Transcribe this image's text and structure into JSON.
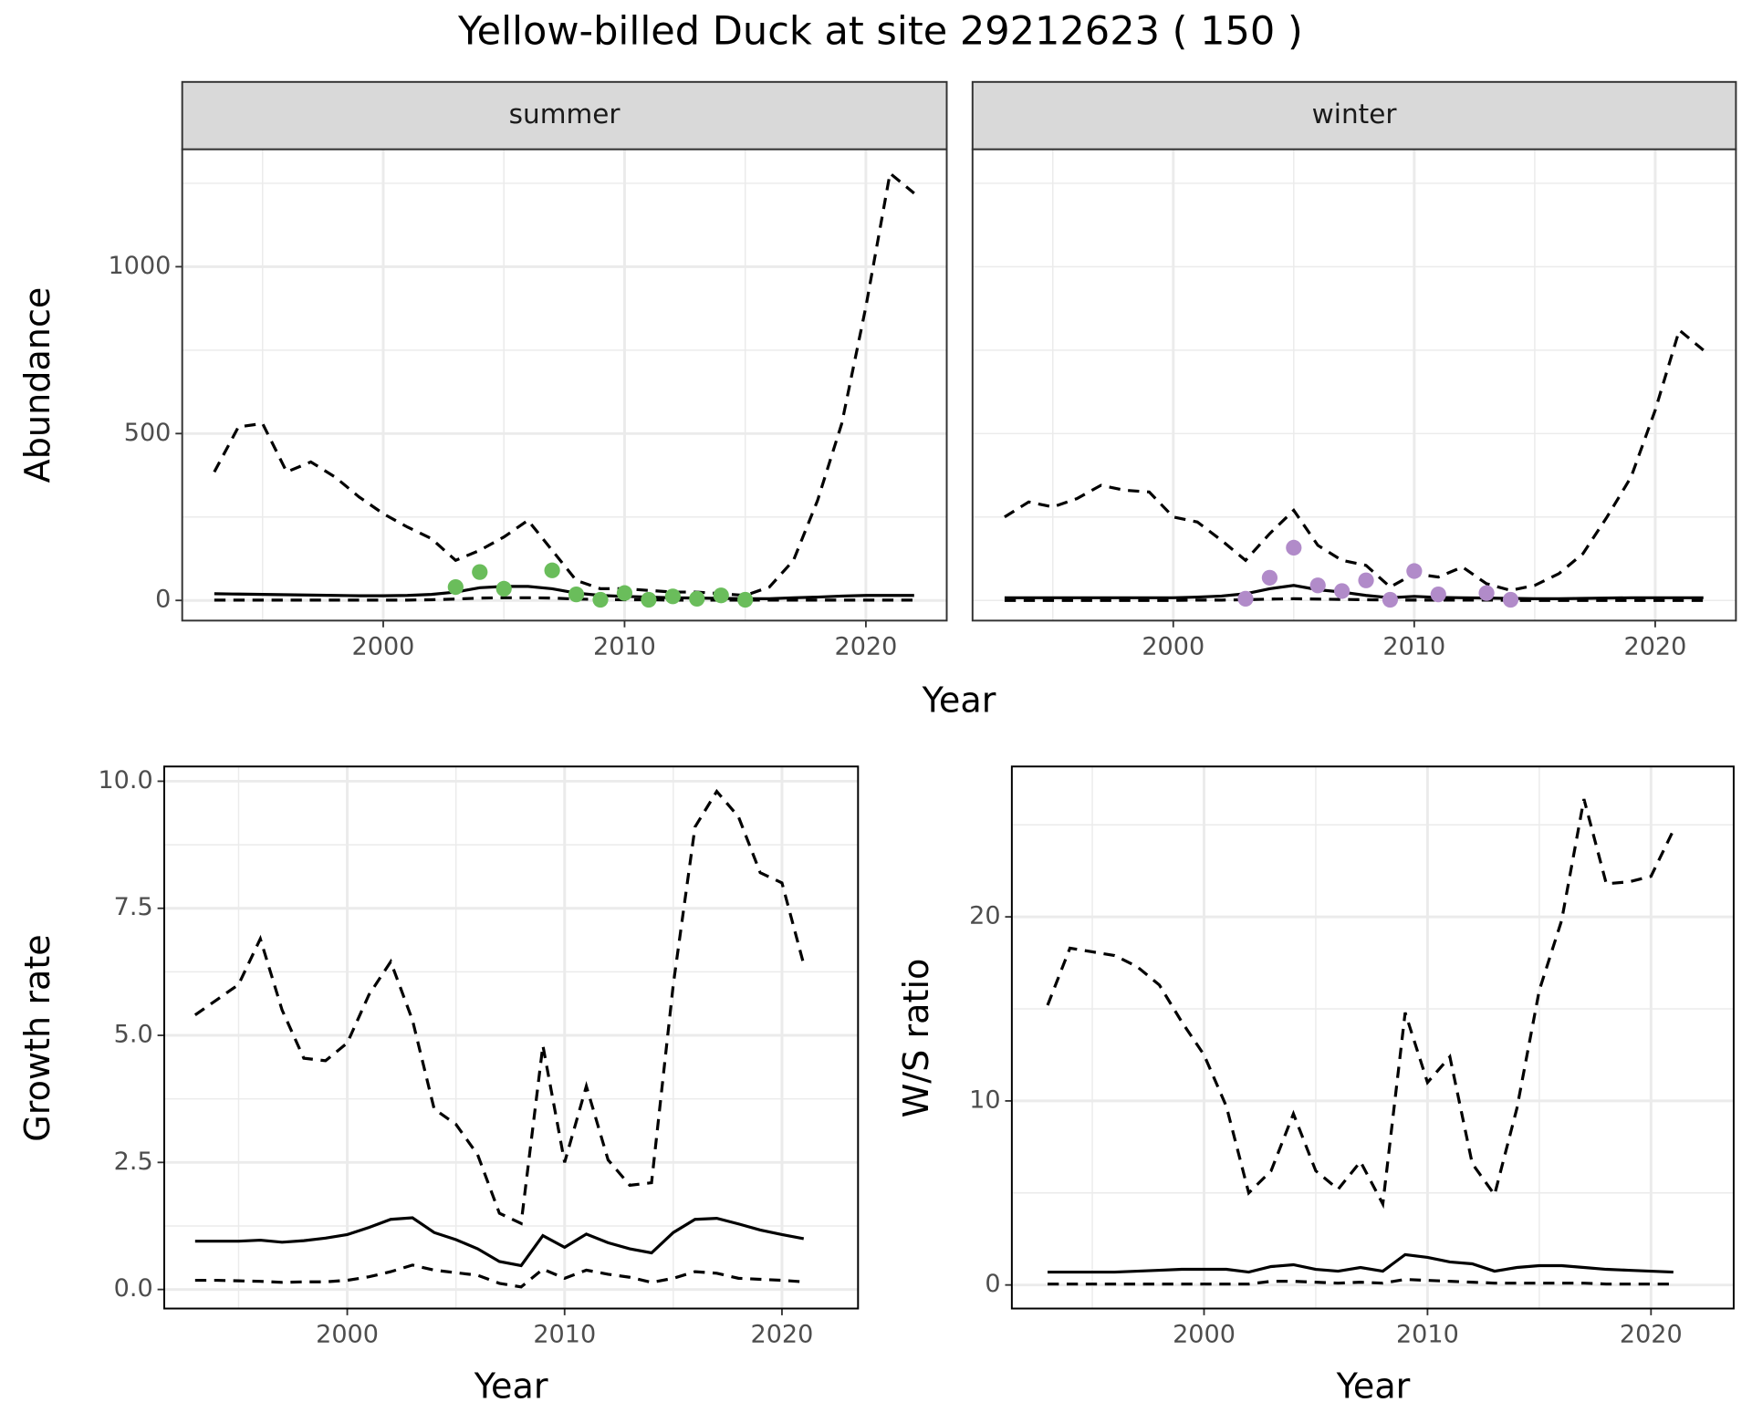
{
  "title": "Yellow-billed Duck at site 29212623 ( 150 )",
  "chart_data": [
    {
      "type": "line",
      "title": "summer",
      "xlabel": "Year",
      "ylabel": "Abundance",
      "xlim": [
        1991.67,
        2023.35
      ],
      "ylim": [
        -60.5,
        1352
      ],
      "xticks": [
        2000,
        2010,
        2020
      ],
      "minor_xticks": [
        1995,
        2005,
        2015
      ],
      "yticks": [
        0,
        500,
        1000
      ],
      "minor_yticks": [
        250,
        750,
        1250
      ],
      "grid": true,
      "x": [
        1993,
        1994,
        1995,
        1996,
        1997,
        1998,
        1999,
        2000,
        2001,
        2002,
        2003,
        2004,
        2005,
        2006,
        2007,
        2008,
        2009,
        2010,
        2011,
        2012,
        2013,
        2014,
        2015,
        2016,
        2017,
        2018,
        2019,
        2020,
        2021,
        2022
      ],
      "series": [
        {
          "style": "dashed",
          "color": "#000000",
          "values": [
            385,
            520,
            530,
            385,
            415,
            370,
            310,
            260,
            220,
            185,
            120,
            150,
            190,
            240,
            150,
            60,
            35,
            35,
            30,
            25,
            25,
            20,
            15,
            40,
            120,
            300,
            530,
            880,
            1280,
            1220
          ]
        },
        {
          "style": "solid",
          "color": "#000000",
          "values": [
            20,
            19,
            18,
            17,
            16,
            15,
            14,
            14,
            15,
            18,
            25,
            38,
            42,
            42,
            35,
            22,
            15,
            12,
            10,
            8,
            7,
            6,
            5,
            5,
            8,
            10,
            13,
            15,
            15,
            15
          ]
        },
        {
          "style": "dashed",
          "color": "#000000",
          "values": [
            1,
            1,
            1,
            1,
            1,
            1,
            1,
            1,
            1,
            2,
            4,
            7,
            8,
            8,
            7,
            4,
            3,
            2,
            2,
            1,
            1,
            1,
            1,
            1,
            1,
            1,
            1,
            1,
            1,
            1
          ]
        },
        {
          "style": "points",
          "color": "#6abd5b",
          "x": [
            2003,
            2004,
            2005,
            2007,
            2008,
            2009,
            2010,
            2011,
            2012,
            2013,
            2014,
            2015
          ],
          "values": [
            40,
            85,
            35,
            90,
            18,
            2,
            22,
            2,
            12,
            5,
            15,
            2
          ]
        }
      ]
    },
    {
      "type": "line",
      "title": "winter",
      "xlim": [
        1991.67,
        2023.35
      ],
      "ylim": [
        -60.5,
        1352
      ],
      "xticks": [
        2000,
        2010,
        2020
      ],
      "minor_xticks": [
        1995,
        2005,
        2015
      ],
      "minor_yticks": [
        0,
        250,
        500,
        750,
        1000,
        1250
      ],
      "grid": true,
      "x": [
        1993,
        1994,
        1995,
        1996,
        1997,
        1998,
        1999,
        2000,
        2001,
        2002,
        2003,
        2004,
        2005,
        2006,
        2007,
        2008,
        2009,
        2010,
        2011,
        2012,
        2013,
        2014,
        2015,
        2016,
        2017,
        2018,
        2019,
        2020,
        2021,
        2022
      ],
      "series": [
        {
          "style": "dashed",
          "color": "#000000",
          "values": [
            250,
            295,
            280,
            305,
            345,
            330,
            325,
            250,
            235,
            180,
            120,
            200,
            270,
            165,
            120,
            105,
            40,
            80,
            70,
            100,
            50,
            30,
            45,
            80,
            140,
            250,
            370,
            570,
            810,
            750
          ]
        },
        {
          "style": "solid",
          "color": "#000000",
          "values": [
            8,
            8,
            8,
            8,
            8,
            8,
            8,
            8,
            10,
            13,
            20,
            35,
            45,
            32,
            25,
            15,
            8,
            12,
            9,
            8,
            7,
            6,
            5,
            5,
            6,
            7,
            8,
            8,
            8,
            8
          ]
        },
        {
          "style": "dashed",
          "color": "#000000",
          "values": [
            0,
            0,
            0,
            0,
            0,
            0,
            0,
            0,
            1,
            1,
            2,
            4,
            5,
            4,
            3,
            2,
            1,
            1,
            1,
            1,
            1,
            0,
            0,
            0,
            0,
            0,
            0,
            0,
            0,
            0
          ]
        },
        {
          "style": "points",
          "color": "#b18bc9",
          "x": [
            2003,
            2004,
            2005,
            2006,
            2007,
            2008,
            2009,
            2010,
            2011,
            2013,
            2014
          ],
          "values": [
            5,
            68,
            158,
            45,
            28,
            60,
            2,
            88,
            18,
            22,
            2
          ]
        }
      ]
    },
    {
      "type": "line",
      "xlabel": "Year",
      "ylabel": "Growth rate",
      "xlim": [
        1991.58,
        2023.5
      ],
      "ylim": [
        -0.375,
        10.29
      ],
      "xticks": [
        2000,
        2010,
        2020
      ],
      "minor_xticks": [
        1995,
        2005,
        2015
      ],
      "yticks": [
        {
          "value": 0,
          "label": "0.0"
        },
        2.5,
        {
          "value": 5,
          "label": "5.0"
        },
        7.5,
        {
          "value": 10,
          "label": "10.0"
        }
      ],
      "minor_yticks": [
        1.25,
        3.75,
        6.25,
        8.75
      ],
      "grid": true,
      "x": [
        1993,
        1994,
        1995,
        1996,
        1997,
        1998,
        1999,
        2000,
        2001,
        2002,
        2003,
        2004,
        2005,
        2006,
        2007,
        2008,
        2009,
        2010,
        2011,
        2012,
        2013,
        2014,
        2015,
        2016,
        2017,
        2018,
        2019,
        2020,
        2021
      ],
      "series": [
        {
          "style": "dashed",
          "color": "#000000",
          "values": [
            5.4,
            5.7,
            6.0,
            6.9,
            5.5,
            4.55,
            4.5,
            4.85,
            5.8,
            6.45,
            5.3,
            3.55,
            3.25,
            2.65,
            1.5,
            1.3,
            4.8,
            2.5,
            4.0,
            2.55,
            2.05,
            2.1,
            6.0,
            9.1,
            9.8,
            9.3,
            8.2,
            8.0,
            6.4
          ]
        },
        {
          "style": "solid",
          "color": "#000000",
          "values": [
            0.95,
            0.95,
            0.95,
            0.97,
            0.93,
            0.96,
            1.01,
            1.08,
            1.22,
            1.38,
            1.41,
            1.12,
            0.98,
            0.8,
            0.55,
            0.47,
            1.06,
            0.83,
            1.09,
            0.92,
            0.8,
            0.72,
            1.12,
            1.38,
            1.4,
            1.29,
            1.17,
            1.08,
            1.0
          ]
        },
        {
          "style": "dashed",
          "color": "#000000",
          "values": [
            0.18,
            0.18,
            0.17,
            0.16,
            0.14,
            0.15,
            0.15,
            0.18,
            0.25,
            0.35,
            0.48,
            0.38,
            0.33,
            0.28,
            0.12,
            0.05,
            0.4,
            0.22,
            0.38,
            0.3,
            0.24,
            0.14,
            0.22,
            0.35,
            0.32,
            0.22,
            0.2,
            0.18,
            0.15
          ]
        }
      ]
    },
    {
      "type": "line",
      "xlabel": "Year",
      "ylabel": "W/S ratio",
      "xlim": [
        1991.4,
        2023.7
      ],
      "ylim": [
        -1.28,
        28.17
      ],
      "xticks": [
        2000,
        2010,
        2020
      ],
      "minor_xticks": [
        1995,
        2005,
        2015
      ],
      "yticks": [
        0,
        10,
        20
      ],
      "minor_yticks": [
        5,
        15,
        25
      ],
      "grid": true,
      "x": [
        1993,
        1994,
        1995,
        1996,
        1997,
        1998,
        1999,
        2000,
        2001,
        2002,
        2003,
        2004,
        2005,
        2006,
        2007,
        2008,
        2009,
        2010,
        2011,
        2012,
        2013,
        2014,
        2015,
        2016,
        2017,
        2018,
        2019,
        2020,
        2021
      ],
      "series": [
        {
          "style": "dashed",
          "color": "#000000",
          "values": [
            15.2,
            18.3,
            18.1,
            17.9,
            17.3,
            16.3,
            14.3,
            12.5,
            9.7,
            5.0,
            6.2,
            9.3,
            6.2,
            5.2,
            6.7,
            4.4,
            14.8,
            11.0,
            12.4,
            6.6,
            4.9,
            9.6,
            16.0,
            19.8,
            26.4,
            21.8,
            21.9,
            22.2,
            24.7
          ]
        },
        {
          "style": "solid",
          "color": "#000000",
          "values": [
            0.7,
            0.7,
            0.7,
            0.7,
            0.75,
            0.8,
            0.85,
            0.85,
            0.85,
            0.7,
            1.0,
            1.1,
            0.85,
            0.75,
            0.95,
            0.75,
            1.65,
            1.5,
            1.25,
            1.15,
            0.75,
            0.95,
            1.05,
            1.05,
            0.95,
            0.85,
            0.8,
            0.75,
            0.7
          ]
        },
        {
          "style": "dashed",
          "color": "#000000",
          "values": [
            0.05,
            0.05,
            0.05,
            0.05,
            0.05,
            0.05,
            0.05,
            0.05,
            0.05,
            0.05,
            0.2,
            0.2,
            0.15,
            0.1,
            0.15,
            0.1,
            0.3,
            0.25,
            0.2,
            0.15,
            0.1,
            0.1,
            0.1,
            0.1,
            0.1,
            0.05,
            0.05,
            0.05,
            0.05
          ]
        }
      ]
    }
  ]
}
